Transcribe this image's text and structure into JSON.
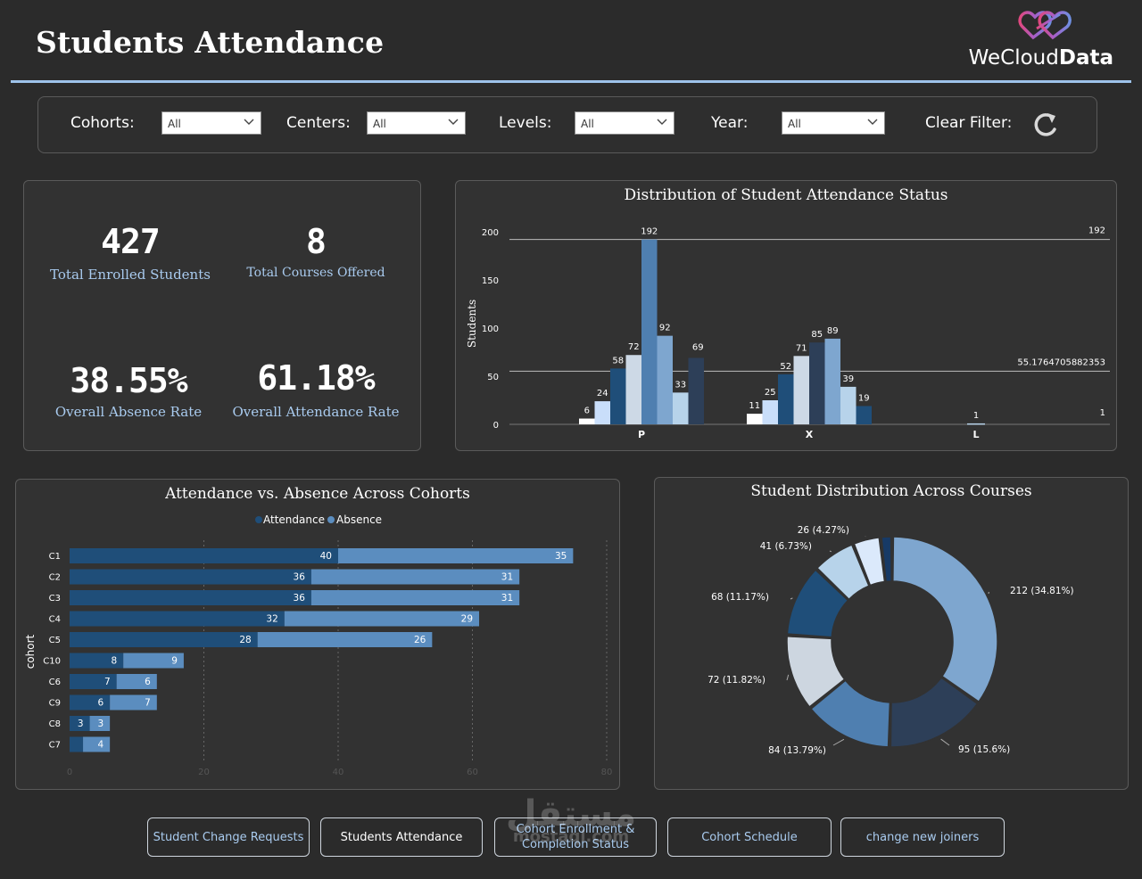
{
  "header": {
    "title": "Students Attendance",
    "brand_prefix": "WeCloud",
    "brand_suffix": "Data"
  },
  "filters": {
    "cohorts": {
      "label": "Cohorts:",
      "value": "All"
    },
    "centers": {
      "label": "Centers:",
      "value": "All"
    },
    "levels": {
      "label": "Levels:",
      "value": "All"
    },
    "year": {
      "label": "Year:",
      "value": "All"
    },
    "clear_label": "Clear Filter:"
  },
  "kpis": {
    "enrolled": {
      "value": "427",
      "label": "Total Enrolled Students"
    },
    "courses": {
      "value": "8",
      "label": "Total Courses Offered"
    },
    "absence": {
      "value": "38.55%",
      "label": "Overall Absence Rate"
    },
    "attendance": {
      "value": "61.18%",
      "label": "Overall Attendance Rate"
    }
  },
  "chart_data": [
    {
      "id": "status",
      "type": "bar",
      "title": "Distribution of Student Attendance Status",
      "ylabel": "Students",
      "ylim": [
        0,
        200
      ],
      "yticks": [
        0,
        50,
        100,
        150,
        200
      ],
      "categories": [
        "P",
        "X",
        "L"
      ],
      "series_colors": [
        "#ffffff",
        "#c9defa",
        "#1f4e79",
        "#cdd9e6",
        "#2e6da4",
        "#3b6e9e",
        "#7ea6cf",
        "#b7d3ea",
        "#263a52"
      ],
      "groups": [
        {
          "category": "P",
          "values": [
            6,
            24,
            58,
            72,
            192,
            92,
            33,
            69
          ],
          "colors": [
            "#ffffff",
            "#c9defa",
            "#1f4e79",
            "#cdd9e6",
            "#4f7fb0",
            "#7ea6cf",
            "#b7d3ea",
            "#2d3f58"
          ]
        },
        {
          "category": "X",
          "values": [
            11,
            25,
            52,
            71,
            85,
            89,
            39,
            19
          ],
          "colors": [
            "#ffffff",
            "#c9defa",
            "#1f4e79",
            "#cdd9e6",
            "#2d3f58",
            "#7ea6cf",
            "#b7d3ea",
            "#1f4e79"
          ]
        },
        {
          "category": "L",
          "values": [
            1
          ],
          "colors": [
            "#b7d3ea"
          ]
        }
      ],
      "max_line": {
        "value": 192,
        "label": "192"
      },
      "avg_line": {
        "value": 55.1764705882353,
        "label": "55.1764705882353"
      },
      "min_line": {
        "value": 1,
        "label": "1"
      }
    },
    {
      "id": "cohorts",
      "type": "bar",
      "orientation": "horizontal",
      "stacked": true,
      "title": "Attendance vs. Absence Across Cohorts",
      "ylabel": "cohort",
      "xlim": [
        0,
        80
      ],
      "xticks": [
        0,
        20,
        40,
        60,
        80
      ],
      "categories": [
        "C1",
        "C2",
        "C3",
        "C4",
        "C5",
        "C10",
        "C6",
        "C9",
        "C8",
        "C7"
      ],
      "series": [
        {
          "name": "Attendance",
          "color": "#1f4e79",
          "values": [
            40,
            36,
            36,
            32,
            28,
            8,
            7,
            6,
            3,
            2
          ]
        },
        {
          "name": "Absence",
          "color": "#5b8dbf",
          "values": [
            35,
            31,
            31,
            29,
            26,
            9,
            6,
            7,
            3,
            4
          ]
        }
      ],
      "attendance_labels": [
        "40",
        "36",
        "36",
        "32",
        "28",
        "8",
        "7",
        "6",
        "3",
        ""
      ]
    },
    {
      "id": "courses",
      "type": "pie",
      "donut": true,
      "title": "Student Distribution Across Courses",
      "slices": [
        {
          "value": 212,
          "label": "212 (34.81%)",
          "color": "#7ea6cf"
        },
        {
          "value": 95,
          "label": "95 (15.6%)",
          "color": "#2d3f58"
        },
        {
          "value": 84,
          "label": "84 (13.79%)",
          "color": "#4f7fb0"
        },
        {
          "value": 72,
          "label": "72 (11.82%)",
          "color": "#cdd6e0"
        },
        {
          "value": 68,
          "label": "68 (11.17%)",
          "color": "#1f4e79"
        },
        {
          "value": 41,
          "label": "41 (6.73%)",
          "color": "#b7d3ea"
        },
        {
          "value": 26,
          "label": "26 (4.27%)",
          "color": "#dbe9fb"
        },
        {
          "value": 11,
          "label": "",
          "color": "#173a66"
        }
      ]
    }
  ],
  "nav": {
    "change_requests": "Student Change Requests",
    "attendance": "Students Attendance",
    "enrollment": "Cohort Enrollment & Completion Status",
    "schedule": "Cohort Schedule",
    "new_joiners": "change new joiners"
  },
  "watermark": {
    "text": "مستقل",
    "sub": "mostaql.com"
  }
}
